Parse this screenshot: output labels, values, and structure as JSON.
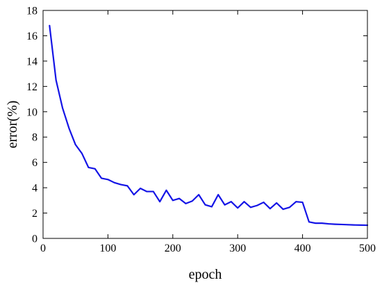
{
  "chart_data": {
    "type": "line",
    "xlabel": "epoch",
    "ylabel": "error(%)",
    "xlim": [
      0,
      500
    ],
    "ylim": [
      0,
      18
    ],
    "x_ticks": [
      0,
      100,
      200,
      300,
      400,
      500
    ],
    "y_ticks": [
      0,
      2,
      4,
      6,
      8,
      10,
      12,
      14,
      16,
      18
    ],
    "grid": false,
    "legend": "none",
    "line_color": "#1414e6",
    "series": [
      {
        "x": [
          10,
          20,
          30,
          40,
          50,
          60,
          70,
          80,
          90,
          100,
          110,
          120,
          130,
          140,
          150,
          160,
          170,
          180,
          190,
          200,
          210,
          220,
          230,
          240,
          250,
          260,
          270,
          280,
          290,
          300,
          310,
          320,
          330,
          340,
          350,
          360,
          370,
          380,
          390,
          400,
          410,
          420,
          430,
          440,
          450,
          460,
          470,
          480,
          490,
          500
        ],
        "values": [
          16.8,
          12.5,
          10.3,
          8.7,
          7.4,
          6.7,
          5.6,
          5.5,
          4.75,
          4.65,
          4.4,
          4.25,
          4.15,
          3.45,
          3.95,
          3.7,
          3.7,
          2.9,
          3.8,
          3.0,
          3.15,
          2.75,
          2.95,
          3.45,
          2.65,
          2.5,
          3.45,
          2.65,
          2.9,
          2.4,
          2.9,
          2.45,
          2.6,
          2.85,
          2.35,
          2.8,
          2.3,
          2.45,
          2.9,
          2.85,
          1.3,
          1.2,
          1.2,
          1.15,
          1.12,
          1.1,
          1.08,
          1.06,
          1.05,
          1.04
        ]
      }
    ]
  }
}
